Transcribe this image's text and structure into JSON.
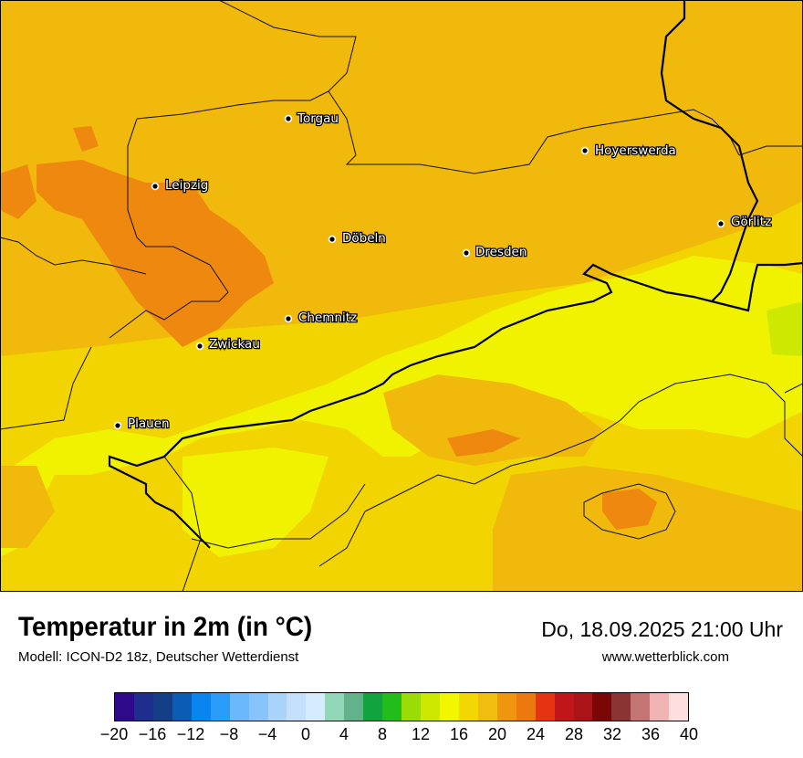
{
  "map": {
    "cities": [
      {
        "name": "Torgau"
      },
      {
        "name": "Hoyerswerda"
      },
      {
        "name": "Leipzig"
      },
      {
        "name": "Görlitz"
      },
      {
        "name": "Döbeln"
      },
      {
        "name": "Dresden"
      },
      {
        "name": "Chemnitz"
      },
      {
        "name": "Zwickau"
      },
      {
        "name": "Plauen"
      }
    ]
  },
  "info": {
    "title": "Temperatur in 2m (in °C)",
    "model": "Modell: ICON-D2 18z, Deutscher Wetterdienst",
    "datetime": "Do, 18.09.2025 21:00 Uhr",
    "website": "www.wetterblick.com"
  },
  "legend": {
    "colors": [
      "#2e0a8a",
      "#1e2e8e",
      "#123f86",
      "#0a5cb4",
      "#0a84ee",
      "#2a9cfa",
      "#6bb8fc",
      "#86c4fb",
      "#a8d4fc",
      "#c4e0fc",
      "#d6ebfd",
      "#92d7b8",
      "#62b38c",
      "#11a33e",
      "#22bd1a",
      "#9cdc06",
      "#cde801",
      "#f2f700",
      "#f2d800",
      "#f1be0e",
      "#f0960e",
      "#ee7810",
      "#e63412",
      "#c0161a",
      "#aa1418",
      "#7a0606",
      "#8a3434",
      "#c57474",
      "#f1b4b4",
      "#ffdede"
    ],
    "ticks": [
      "−20",
      "−16",
      "−12",
      "−8",
      "−4",
      "0",
      "4",
      "8",
      "12",
      "16",
      "20",
      "24",
      "28",
      "32",
      "36",
      "40"
    ]
  }
}
